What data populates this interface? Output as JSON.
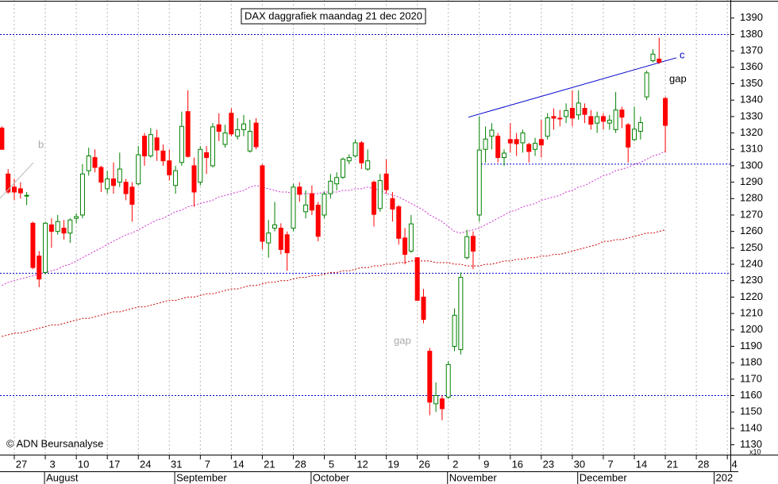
{
  "chart_data": {
    "type": "candlestick",
    "title": "DAX daggrafiek maandag 21 dec 2020",
    "categories": [
      null,
      null,
      "27",
      null,
      null,
      null,
      null,
      "3",
      null,
      null,
      null,
      null,
      "10",
      null,
      null,
      null,
      null,
      "17",
      null,
      null,
      null,
      null,
      "24",
      null,
      null,
      null,
      null,
      "31",
      null,
      null,
      null,
      null,
      "7",
      null,
      null,
      null,
      null,
      "14",
      null,
      null,
      null,
      null,
      "21",
      null,
      null,
      null,
      null,
      "28",
      null,
      null,
      null,
      null,
      "5",
      null,
      null,
      null,
      null,
      "12",
      null,
      null,
      null,
      null,
      "19",
      null,
      null,
      null,
      null,
      "26",
      null,
      null,
      null,
      null,
      "2",
      null,
      null,
      null,
      null,
      "9",
      null,
      null,
      null,
      null,
      "16",
      null,
      null,
      null,
      null,
      "23",
      null,
      null,
      null,
      null,
      "30",
      null,
      null,
      null,
      null,
      "7",
      null,
      null,
      null,
      null,
      "14",
      null,
      null,
      null,
      null,
      "21",
      null,
      null,
      null,
      null,
      "28",
      null,
      null,
      null,
      null,
      "4"
    ],
    "months": [
      "August",
      "September",
      "October",
      "November",
      "December",
      "202"
    ],
    "open": [
      1323,
      1295,
      1287,
      1286,
      1282,
      1265,
      1245,
      1235,
      1264,
      1260,
      1262,
      1259,
      1268,
      1270,
      1297,
      1305,
      1299,
      1286,
      1292,
      1290,
      1290,
      1287,
      1289,
      1318,
      1306,
      1317,
      1309,
      1303,
      1288,
      1302,
      1333,
      1300,
      1290,
      1308,
      1300,
      1325,
      1313,
      1332,
      1318,
      1322,
      1309,
      1326,
      1300,
      1253,
      1262,
      1262,
      1258,
      1262,
      1287,
      1272,
      1283,
      1276,
      1270,
      1283,
      1289,
      1293,
      1303,
      1306,
      1314,
      1298,
      1290,
      1274,
      1295,
      1280,
      1275,
      1256,
      1248,
      1244,
      1220,
      1187,
      1155,
      1158,
      1159,
      1190,
      1188,
      1244,
      1257,
      1270,
      1310,
      1318,
      1318,
      1305,
      1316,
      1316,
      1314,
      1313,
      1310,
      1316,
      1318,
      1330,
      1329,
      1330,
      1335,
      1331,
      1335,
      1330,
      1326,
      1330,
      1326,
      1322,
      1334,
      1325,
      1316,
      1321,
      1342,
      1364,
      1365,
      1341,
      null,
      null,
      null,
      null,
      null,
      null,
      null,
      null,
      null,
      null
    ],
    "high": [
      1324,
      1298,
      1292,
      1290,
      1284,
      1266,
      1248,
      1266,
      1268,
      1270,
      1267,
      1268,
      1271,
      1301,
      1311,
      1310,
      1300,
      1297,
      1302,
      1308,
      1292,
      1290,
      1312,
      1320,
      1323,
      1322,
      1313,
      1310,
      1300,
      1333,
      1346,
      1305,
      1312,
      1312,
      1326,
      1332,
      1325,
      1335,
      1329,
      1331,
      1328,
      1329,
      1301,
      1267,
      1278,
      1265,
      1260,
      1289,
      1290,
      1285,
      1288,
      1278,
      1284,
      1295,
      1296,
      1305,
      1307,
      1316,
      1315,
      1310,
      1291,
      1295,
      1304,
      1284,
      1276,
      1262,
      1270,
      1244,
      1225,
      1189,
      1168,
      1160,
      1181,
      1213,
      1235,
      1261,
      1260,
      1330,
      1324,
      1326,
      1320,
      1310,
      1326,
      1320,
      1322,
      1314,
      1317,
      1328,
      1332,
      1335,
      1334,
      1338,
      1346,
      1346,
      1338,
      1334,
      1333,
      1332,
      1331,
      1345,
      1336,
      1326,
      1336,
      1330,
      1358,
      1371,
      1378,
      1342,
      null,
      null,
      null,
      null,
      null,
      null,
      null,
      null,
      null,
      null
    ],
    "low": [
      1310,
      1283,
      1279,
      1280,
      1276,
      1237,
      1226,
      1234,
      1250,
      1258,
      1255,
      1253,
      1265,
      1268,
      1294,
      1296,
      1284,
      1283,
      1283,
      1287,
      1279,
      1266,
      1288,
      1300,
      1305,
      1303,
      1300,
      1291,
      1283,
      1300,
      1305,
      1275,
      1288,
      1295,
      1299,
      1315,
      1311,
      1318,
      1316,
      1318,
      1308,
      1310,
      1249,
      1244,
      1260,
      1246,
      1236,
      1260,
      1278,
      1268,
      1270,
      1254,
      1268,
      1280,
      1285,
      1292,
      1301,
      1305,
      1298,
      1297,
      1263,
      1272,
      1283,
      1266,
      1252,
      1240,
      1247,
      1220,
      1204,
      1148,
      1150,
      1145,
      1158,
      1187,
      1185,
      1243,
      1237,
      1266,
      1302,
      1310,
      1302,
      1300,
      1308,
      1306,
      1308,
      1302,
      1306,
      1305,
      1316,
      1322,
      1324,
      1326,
      1324,
      1328,
      1326,
      1322,
      1320,
      1322,
      1322,
      1320,
      1323,
      1302,
      1315,
      1316,
      1340,
      1363,
      1362,
      1308,
      null,
      null,
      null,
      null,
      null,
      null,
      null,
      null,
      null,
      null
    ],
    "close": [
      1310,
      1284,
      1284,
      1283.5,
      1282,
      1238,
      1231,
      1265,
      1260,
      1266,
      1259,
      1267,
      1269,
      1295,
      1306,
      1299,
      1290,
      1292,
      1288,
      1298,
      1283,
      1276.5,
      1306.7,
      1306,
      1319,
      1309.6,
      1303,
      1294.5,
      1297,
      1324,
      1305.7,
      1284,
      1310,
      1305,
      1323.7,
      1321,
      1320,
      1319.4,
      1322,
      1325.5,
      1321,
      1311.6,
      1254,
      1259,
      1264,
      1249,
      1247,
      1287,
      1282.6,
      1276.1,
      1273,
      1257,
      1282.8,
      1290.6,
      1292.8,
      1304,
      1305,
      1314,
      1301.8,
      1303,
      1270.4,
      1291,
      1285.4,
      1273.6,
      1255.8,
      1246,
      1264.6,
      1218,
      1206.4,
      1156,
      1160,
      1152,
      1178.9,
      1208.9,
      1232,
      1256.8,
      1248,
      1309.6,
      1316.3,
      1321.7,
      1305,
      1307.7,
      1313.9,
      1313.4,
      1320,
      1308.7,
      1313.7,
      1312.7,
      1329.2,
      1329,
      1328.6,
      1333.6,
      1329.1,
      1338.2,
      1331.3,
      1325.3,
      1329.9,
      1327.1,
      1327.8,
      1334,
      1329.6,
      1311.4,
      1322.3,
      1326.3,
      1356.6,
      1368,
      1363.1,
      1324.6,
      null,
      null,
      null,
      null,
      null,
      null,
      null,
      null,
      null,
      null
    ],
    "up_color": "#008000",
    "down_color": "#ff0000",
    "moving_averages": [
      {
        "color": "#cc33cc",
        "values": [
          1227,
          1229,
          1230,
          1231,
          1232,
          1233,
          1234,
          1235,
          1236,
          1237,
          1239,
          1240,
          1242,
          1244,
          1246,
          1248,
          1250,
          1252,
          1254,
          1256,
          1258,
          1259,
          1261,
          1263,
          1265,
          1267,
          1268,
          1270,
          1272,
          1273,
          1275,
          1276,
          1277,
          1278,
          1279,
          1281,
          1282,
          1283,
          1284,
          1285,
          1287,
          1288,
          1287,
          1286,
          1285,
          1284,
          1284,
          1283,
          1283,
          1283,
          1283,
          1283,
          1284,
          1284,
          1284,
          1285,
          1285,
          1286,
          1286,
          1287,
          1286,
          1285,
          1283,
          1282,
          1281,
          1279,
          1277,
          1275,
          1273,
          1270,
          1268,
          1266,
          1263,
          1260,
          1259,
          1260,
          1261,
          1262,
          1264,
          1266,
          1268,
          1270,
          1272,
          1273,
          1275,
          1276,
          1277,
          1279,
          1280,
          1281,
          1282,
          1284,
          1285,
          1287,
          1288,
          1290,
          1292,
          1294,
          1295,
          1297,
          1298,
          1299,
          1301,
          1302,
          1304,
          1306,
          1307,
          1309,
          null,
          null,
          null,
          null,
          null,
          null,
          null,
          null,
          null,
          null
        ]
      },
      {
        "color": "#cc0000",
        "values": [
          1196,
          1197,
          1198,
          1198,
          1199,
          1200,
          1201,
          1202,
          1203,
          1203,
          1204,
          1205,
          1206,
          1207,
          1207,
          1208,
          1209,
          1210,
          1211,
          1211,
          1212,
          1213,
          1214,
          1214,
          1215,
          1216,
          1217,
          1218,
          1218,
          1219,
          1220,
          1220,
          1221,
          1222,
          1222,
          1223,
          1224,
          1225,
          1225,
          1226,
          1227,
          1227,
          1228,
          1229,
          1229,
          1230,
          1230,
          1231,
          1232,
          1232,
          1233,
          1233,
          1234,
          1235,
          1235,
          1236,
          1236,
          1237,
          1238,
          1238,
          1239,
          1239,
          1240,
          1240,
          1241,
          1241,
          1242,
          1242,
          1242,
          1242,
          1241,
          1241,
          1241,
          1240,
          1240,
          1239,
          1239,
          1239,
          1240,
          1240,
          1241,
          1242,
          1242,
          1243,
          1243,
          1244,
          1244,
          1245,
          1245,
          1246,
          1246,
          1247,
          1248,
          1249,
          1250,
          1251,
          1252,
          1254,
          1254,
          1255,
          1255,
          1256,
          1257,
          1258,
          1259,
          1259,
          1260,
          1261,
          null,
          null,
          null,
          null,
          null,
          null,
          null,
          null,
          null,
          null
        ]
      }
    ],
    "hlines": {
      "color": "#0000cc",
      "values": [
        1380,
        1301,
        1234.5,
        1160
      ]
    },
    "trendline": {
      "color": "#0000cc",
      "values": [
        1329.6,
        1365.8
      ]
    },
    "annotations": [
      "b",
      "gap",
      "c",
      "gap",
      "© ADN Beursanalyse"
    ],
    "y_multiplier": "x10",
    "ylim": [
      1124,
      1401
    ],
    "yticks": [
      1130,
      1140,
      1150,
      1160,
      1170,
      1180,
      1190,
      1200,
      1210,
      1220,
      1230,
      1240,
      1250,
      1260,
      1270,
      1280,
      1290,
      1300,
      1310,
      1320,
      1330,
      1340,
      1350,
      1360,
      1370,
      1380,
      1390
    ],
    "grid": "x"
  }
}
